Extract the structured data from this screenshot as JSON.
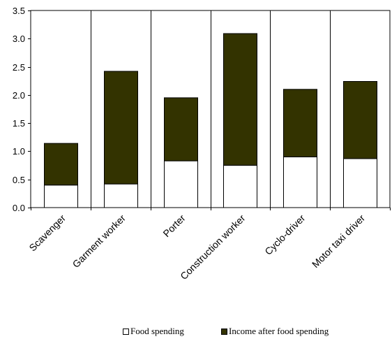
{
  "chart_data": {
    "type": "bar",
    "stacked": true,
    "categories": [
      "Scavenger",
      "Garment worker",
      "Porter",
      "Construction worker",
      "Cyclo-driver",
      "Motor taxi driver"
    ],
    "series": [
      {
        "name": "Food spending",
        "color": "#ffffff",
        "values": [
          0.4,
          0.42,
          0.83,
          0.75,
          0.9,
          0.87
        ]
      },
      {
        "name": "Income after food spending",
        "color": "#333300",
        "values": [
          0.74,
          2.0,
          1.12,
          2.34,
          1.2,
          1.37
        ]
      }
    ],
    "ylim": [
      0,
      3.5
    ],
    "yticks": [
      "0.0",
      "0.5",
      "1.0",
      "1.5",
      "2.0",
      "2.5",
      "3.0",
      "3.5"
    ],
    "title": "",
    "xlabel": "",
    "ylabel": "",
    "grid": "vertical",
    "legend_position": "bottom"
  }
}
